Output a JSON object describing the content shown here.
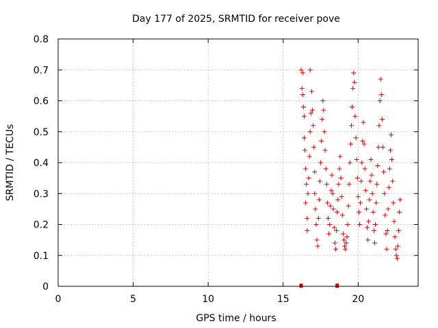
{
  "chart_data": {
    "type": "scatter",
    "title": "Day 177 of 2025, SRMTID for receiver pove",
    "xlabel": "GPS time / hours",
    "ylabel": "SRMTID / TECUs",
    "xlim": [
      0,
      24
    ],
    "ylim": [
      0,
      0.8
    ],
    "xticks": [
      0,
      5,
      10,
      15,
      20
    ],
    "yticks": [
      0,
      0.1,
      0.2,
      0.3,
      0.4,
      0.5,
      0.6,
      0.7,
      0.8
    ],
    "ytick_labels": [
      "0",
      "0.1",
      "0.2",
      "0.3",
      "0.4",
      "0.5",
      "0.6",
      "0.7",
      "0.8"
    ],
    "grid": true,
    "marker": "+",
    "color": "#e00000",
    "series": [
      {
        "name": "SRMTID",
        "points": [
          [
            16.2,
            0.7
          ],
          [
            16.25,
            0.64
          ],
          [
            16.3,
            0.69
          ],
          [
            16.3,
            0.62
          ],
          [
            16.35,
            0.58
          ],
          [
            16.4,
            0.55
          ],
          [
            16.4,
            0.48
          ],
          [
            16.45,
            0.44
          ],
          [
            16.5,
            0.38
          ],
          [
            16.55,
            0.33
          ],
          [
            16.5,
            0.27
          ],
          [
            16.6,
            0.22
          ],
          [
            16.6,
            0.18
          ],
          [
            16.65,
            0.3
          ],
          [
            16.7,
            0.35
          ],
          [
            16.75,
            0.42
          ],
          [
            16.8,
            0.5
          ],
          [
            16.85,
            0.56
          ],
          [
            16.8,
            0.7
          ],
          [
            16.9,
            0.63
          ],
          [
            16.95,
            0.57
          ],
          [
            17.0,
            0.52
          ],
          [
            17.05,
            0.45
          ],
          [
            17.1,
            0.37
          ],
          [
            17.1,
            0.3
          ],
          [
            17.15,
            0.25
          ],
          [
            17.2,
            0.2
          ],
          [
            17.25,
            0.15
          ],
          [
            17.3,
            0.13
          ],
          [
            17.35,
            0.22
          ],
          [
            17.4,
            0.28
          ],
          [
            17.45,
            0.34
          ],
          [
            17.5,
            0.4
          ],
          [
            17.55,
            0.47
          ],
          [
            17.6,
            0.54
          ],
          [
            17.65,
            0.6
          ],
          [
            17.7,
            0.57
          ],
          [
            17.75,
            0.5
          ],
          [
            17.8,
            0.44
          ],
          [
            17.85,
            0.38
          ],
          [
            17.9,
            0.33
          ],
          [
            17.95,
            0.27
          ],
          [
            18.0,
            0.22
          ],
          [
            18.05,
            0.17
          ],
          [
            18.1,
            0.2
          ],
          [
            18.15,
            0.26
          ],
          [
            18.2,
            0.31
          ],
          [
            18.25,
            0.36
          ],
          [
            18.3,
            0.3
          ],
          [
            18.35,
            0.25
          ],
          [
            18.4,
            0.19
          ],
          [
            18.45,
            0.14
          ],
          [
            18.5,
            0.12
          ],
          [
            18.55,
            0.18
          ],
          [
            18.6,
            0.24
          ],
          [
            18.65,
            0.28
          ],
          [
            18.7,
            0.33
          ],
          [
            18.75,
            0.38
          ],
          [
            18.8,
            0.42
          ],
          [
            18.85,
            0.35
          ],
          [
            18.9,
            0.29
          ],
          [
            18.95,
            0.23
          ],
          [
            19.0,
            0.17
          ],
          [
            19.05,
            0.15
          ],
          [
            19.1,
            0.13
          ],
          [
            19.15,
            0.12
          ],
          [
            19.2,
            0.14
          ],
          [
            19.25,
            0.16
          ],
          [
            19.3,
            0.2
          ],
          [
            19.35,
            0.26
          ],
          [
            19.4,
            0.33
          ],
          [
            19.45,
            0.4
          ],
          [
            19.5,
            0.46
          ],
          [
            19.55,
            0.52
          ],
          [
            19.6,
            0.58
          ],
          [
            19.65,
            0.64
          ],
          [
            19.7,
            0.69
          ],
          [
            19.75,
            0.66
          ],
          [
            19.8,
            0.55
          ],
          [
            19.85,
            0.48
          ],
          [
            19.9,
            0.41
          ],
          [
            19.95,
            0.35
          ],
          [
            20.0,
            0.29
          ],
          [
            20.05,
            0.24
          ],
          [
            20.1,
            0.2
          ],
          [
            20.15,
            0.27
          ],
          [
            20.2,
            0.34
          ],
          [
            20.25,
            0.4
          ],
          [
            20.3,
            0.47
          ],
          [
            20.35,
            0.53
          ],
          [
            20.4,
            0.46
          ],
          [
            20.45,
            0.38
          ],
          [
            20.5,
            0.31
          ],
          [
            20.55,
            0.25
          ],
          [
            20.6,
            0.19
          ],
          [
            20.65,
            0.15
          ],
          [
            20.7,
            0.21
          ],
          [
            20.75,
            0.28
          ],
          [
            20.8,
            0.34
          ],
          [
            20.85,
            0.41
          ],
          [
            20.9,
            0.36
          ],
          [
            20.95,
            0.3
          ],
          [
            21.0,
            0.24
          ],
          [
            21.05,
            0.18
          ],
          [
            21.1,
            0.14
          ],
          [
            21.15,
            0.2
          ],
          [
            21.2,
            0.27
          ],
          [
            21.25,
            0.33
          ],
          [
            21.3,
            0.39
          ],
          [
            21.35,
            0.45
          ],
          [
            21.4,
            0.52
          ],
          [
            21.45,
            0.6
          ],
          [
            21.5,
            0.67
          ],
          [
            21.55,
            0.62
          ],
          [
            21.6,
            0.54
          ],
          [
            21.65,
            0.45
          ],
          [
            21.7,
            0.37
          ],
          [
            21.75,
            0.3
          ],
          [
            21.8,
            0.23
          ],
          [
            21.85,
            0.17
          ],
          [
            21.9,
            0.12
          ],
          [
            21.95,
            0.18
          ],
          [
            22.0,
            0.25
          ],
          [
            22.05,
            0.32
          ],
          [
            22.1,
            0.38
          ],
          [
            22.15,
            0.44
          ],
          [
            22.2,
            0.49
          ],
          [
            22.25,
            0.41
          ],
          [
            22.3,
            0.34
          ],
          [
            22.35,
            0.27
          ],
          [
            22.4,
            0.21
          ],
          [
            22.45,
            0.16
          ],
          [
            22.5,
            0.12
          ],
          [
            22.55,
            0.1
          ],
          [
            22.6,
            0.09
          ],
          [
            22.65,
            0.13
          ],
          [
            22.7,
            0.18
          ],
          [
            22.75,
            0.24
          ],
          [
            22.8,
            0.28
          ]
        ]
      }
    ],
    "zero_marks": [
      16.2,
      18.6
    ]
  }
}
